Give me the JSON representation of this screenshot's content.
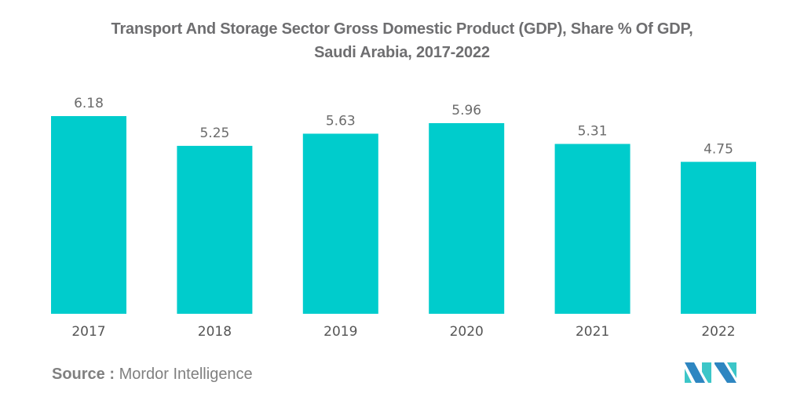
{
  "chart_data": {
    "type": "bar",
    "title": "Transport And Storage Sector Gross Domestic Product (GDP), Share % Of GDP, Saudi Arabia, 2017-2022",
    "title_lines": [
      "Transport And Storage Sector Gross Domestic Product (GDP), Share % Of GDP,",
      "Saudi Arabia, 2017-2022"
    ],
    "categories": [
      "2017",
      "2018",
      "2019",
      "2020",
      "2021",
      "2022"
    ],
    "values": [
      6.18,
      5.25,
      5.63,
      5.96,
      5.31,
      4.75
    ],
    "value_labels": [
      "6.18",
      "5.25",
      "5.63",
      "5.96",
      "5.31",
      "4.75"
    ],
    "xlabel": "",
    "ylabel": "",
    "ylim": [
      0,
      6.18
    ],
    "grid": false,
    "legend": "none",
    "bar_color": "#00cccc"
  },
  "source": {
    "label": "Source :",
    "name": "Mordor Intelligence"
  },
  "logo": {
    "name": "mordor-intelligence-logo",
    "colors": [
      "#2e86c1",
      "#3cc6c8"
    ]
  }
}
